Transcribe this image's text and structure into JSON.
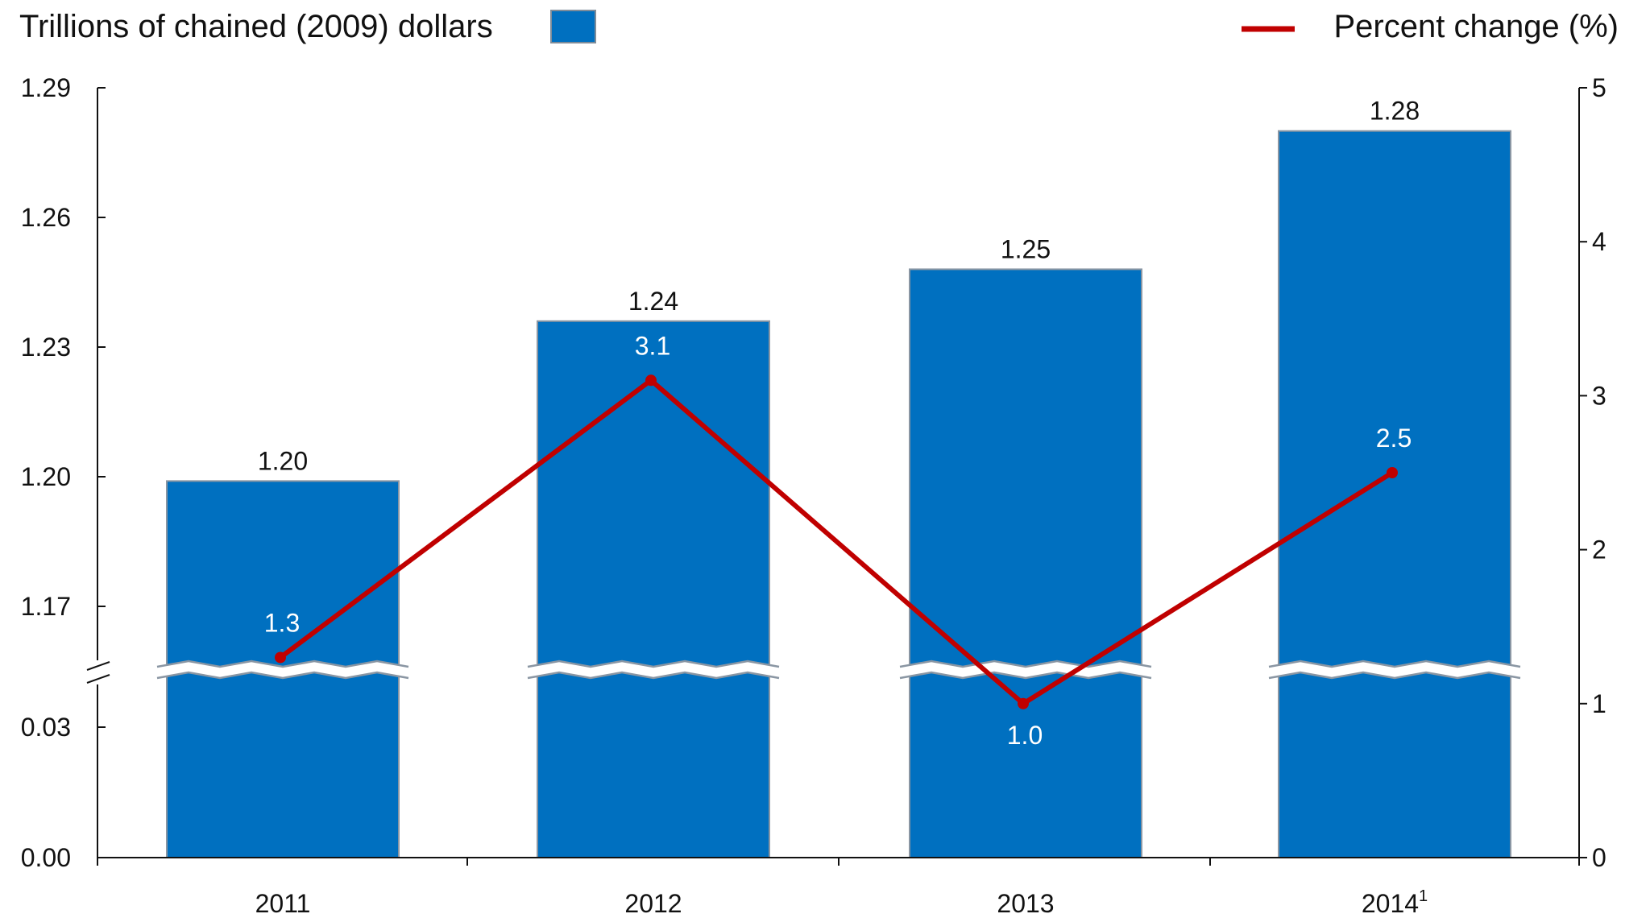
{
  "chart_data": {
    "type": "bar+line",
    "categories": [
      "2011",
      "2012",
      "2013",
      "2014"
    ],
    "category_superscripts": [
      "",
      "",
      "",
      "1"
    ],
    "series": [
      {
        "name": "Trillions of chained (2009) dollars",
        "type": "bar",
        "axis": "left",
        "values": [
          1.199,
          1.236,
          1.248,
          1.28
        ],
        "labels": [
          "1.20",
          "1.24",
          "1.25",
          "1.28"
        ],
        "color": "#0070C0"
      },
      {
        "name": "Percent change (%)",
        "type": "line",
        "axis": "right",
        "values": [
          1.3,
          3.1,
          1.0,
          2.5
        ],
        "labels": [
          "1.3",
          "3.1",
          "1.0",
          "2.5"
        ],
        "color": "#C00000"
      }
    ],
    "left_axis": {
      "ticks_upper": [
        "1.17",
        "1.20",
        "1.23",
        "1.26",
        "1.29"
      ],
      "ticks_lower": [
        "0.00",
        "0.03"
      ],
      "range_upper": [
        1.155,
        1.29
      ],
      "range_lower": [
        0,
        0.045
      ],
      "broken": true
    },
    "right_axis": {
      "ticks": [
        "0",
        "1",
        "2",
        "3",
        "4",
        "5"
      ],
      "range": [
        0,
        5
      ]
    },
    "legend": {
      "bar_label": "Trillions of chained (2009) dollars",
      "line_label": "Percent change (%)",
      "placement": "top"
    },
    "grid": false
  }
}
